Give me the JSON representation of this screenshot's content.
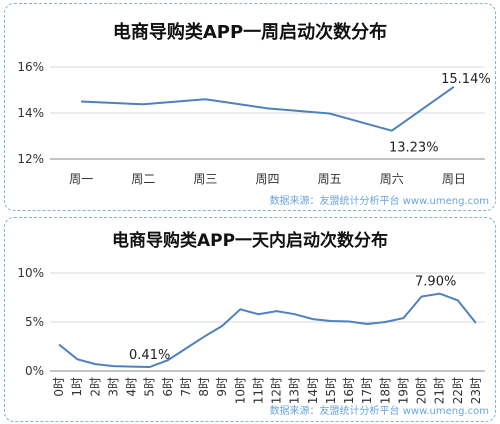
{
  "chart_data": [
    {
      "type": "line",
      "title": "电商导购类APP一周启动次数分布",
      "categories": [
        "周一",
        "周二",
        "周三",
        "周四",
        "周五",
        "周六",
        "周日"
      ],
      "series": [
        {
          "values": [
            14.5,
            14.38,
            14.6,
            14.2,
            13.98,
            13.23,
            15.14
          ]
        }
      ],
      "y_ticks": [
        "12%",
        "14%",
        "16%"
      ],
      "ylim": [
        12,
        16
      ],
      "y_unit": "%",
      "data_labels": [
        {
          "index": 5,
          "text": "13.23%"
        },
        {
          "index": 6,
          "text": "15.14%"
        }
      ],
      "grid": "horizontal",
      "line_color": "#4f81bd",
      "source": "数据来源：友盟统计分析平台 www.umeng.com"
    },
    {
      "type": "line",
      "title": "电商导购类APP一天内启动次数分布",
      "categories": [
        "0时",
        "1时",
        "2时",
        "3时",
        "4时",
        "5时",
        "6时",
        "7时",
        "8时",
        "9时",
        "10时",
        "11时",
        "12时",
        "13时",
        "14时",
        "15时",
        "16时",
        "17时",
        "18时",
        "19时",
        "20时",
        "21时",
        "22时",
        "23时"
      ],
      "series": [
        {
          "values": [
            2.7,
            1.2,
            0.7,
            0.5,
            0.45,
            0.41,
            1.1,
            2.3,
            3.5,
            4.6,
            6.3,
            5.8,
            6.1,
            5.8,
            5.3,
            5.1,
            5.05,
            4.8,
            5.0,
            5.4,
            7.6,
            7.9,
            7.2,
            4.9
          ]
        }
      ],
      "y_ticks": [
        "0%",
        "5%",
        "10%"
      ],
      "ylim": [
        0,
        10
      ],
      "y_unit": "%",
      "data_labels": [
        {
          "index": 5,
          "text": "0.41%"
        },
        {
          "index": 21,
          "text": "7.90%"
        }
      ],
      "grid": "horizontal",
      "line_color": "#4f81bd",
      "source": "数据来源：友盟统计分析平台 www.umeng.com"
    }
  ]
}
